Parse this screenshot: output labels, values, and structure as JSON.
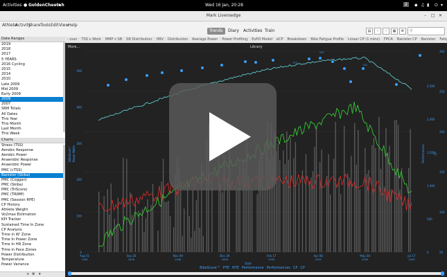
{
  "topbar": {
    "activities": "Activities",
    "app_name": "GoldenCheetah",
    "clock": "Wed 16 Jan, 20:28",
    "badge": "2"
  },
  "window": {
    "title": "Mark Liversedge"
  },
  "menu": {
    "items": [
      "Athlete",
      "Activity",
      "Share",
      "Tools",
      "Edit",
      "View",
      "Help"
    ],
    "views": [
      "Trends",
      "Diary",
      "Activities",
      "Train"
    ],
    "active_view": "Trends"
  },
  "chart_tabs": [
    "- over",
    "TSS v Work",
    "MMP v SB",
    "SB Distribution",
    "HRV",
    "Distribution",
    "Average Power",
    "Power Profiling",
    "ExPO Model",
    "eCP",
    "Breakdown",
    "Bike Fatigue Profile",
    "Linear CP (1 mins)",
    "FPCA",
    "Banister CP",
    "Banister",
    "Fatigue"
  ],
  "sidebar": {
    "date_ranges_header": "Date Ranges",
    "date_ranges": [
      "2019",
      "2018",
      "2017",
      "5 YEARS",
      "2016 Cycling",
      "2015",
      "2014",
      "2010",
      "Late 2009",
      "Mid 2009",
      "Early 2009",
      "2009",
      "2007",
      "SRM Totals",
      "All Dates",
      "This Year",
      "This Month",
      "Last Month",
      "This Week"
    ],
    "selected_range": "2009",
    "charts_header": "Charts",
    "charts": [
      "Stress (TSS)",
      "Aerobic Response",
      "Aerobic Power",
      "Anaerobic Response",
      "Anaerobic Power",
      "PMC (cTSS)",
      "Banister (Skiba)",
      "PMC (Coggan)",
      "PMC (Skiba)",
      "PMC (TriScore)",
      "PMC (TRIMP)",
      "PMC (Session RPE)",
      "CP History",
      "Athlete Weight",
      "Vo2max Estimation",
      "KPI Tracker",
      "Sustained Time In Zone",
      "CP Analysis",
      "Time in W' Zone",
      "Time In Power Zone",
      "Time In HR Zone",
      "Time in Pace Zones",
      "Power Distribution",
      "Temperature",
      "Power Variance"
    ],
    "selected_chart": "Banister (Skiba)"
  },
  "chart": {
    "more_label": "More...",
    "library_label": "Library",
    "x_title": "Date",
    "x_ticks": [
      "Aug 01\n2008",
      "Sep 28\n2008",
      "Nov 09\n2008",
      "Dec 29\n2008",
      "Feb 17\n2009",
      "Apr 08\n2009",
      "May 28\n2009",
      "Jul 17\n2009"
    ],
    "y_left_ticks": [
      "500",
      "400",
      "300",
      "200",
      "100",
      "0"
    ],
    "y_right1_ticks": [
      "2,500",
      "2,000",
      "1,500",
      "1,000",
      "500",
      "0"
    ],
    "y_right2_ticks": [
      "300",
      "250",
      "200",
      "150",
      "100",
      "50"
    ],
    "y_left_title": "BikeScore™",
    "y_left_title2": "Power Watts",
    "y_right_title": "Performances",
    "y_right_title2": "CP",
    "peak_labels": [
      "377",
      "333",
      "322"
    ],
    "legend": [
      "BikeScore™",
      "PTE",
      "NTE",
      "Performance",
      "Performances",
      "CP",
      "CP"
    ],
    "colors": {
      "cp_line": "#5fc8cc",
      "fitness": "#35c835",
      "fatigue": "#d22a2a",
      "points": "#3aa0ff",
      "bars": "#777777",
      "legend": "#3aa0ff"
    }
  }
}
